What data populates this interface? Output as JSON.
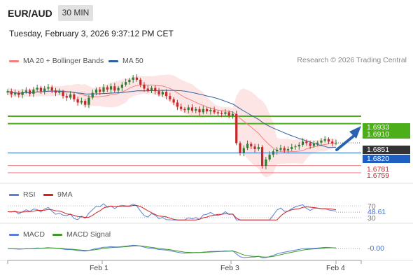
{
  "header": {
    "symbol": "EUR/AUD",
    "timeframe": "30 MIN",
    "datetime": "Tuesday, February 3, 2026 9:37:12 PM CET"
  },
  "main_legend": [
    {
      "label": "MA 20 + Bollinger Bands",
      "color": "#f08080"
    },
    {
      "label": "MA 50",
      "color": "#2f5f9e"
    }
  ],
  "credit": "Research © 2026 Trading Central",
  "colors": {
    "up_candle": "#2e7d32",
    "down_candle": "#c62828",
    "band_fill": "#fde2e2",
    "ma20": "#f08080",
    "ma50": "#2f5f9e",
    "resistance": "#4caf1a",
    "support": "#f08080",
    "current": "#333333",
    "pivot": "#1e5fbf",
    "arrow": "#2a62b0"
  },
  "price_labels": [
    {
      "text": "1.6933",
      "kind": "resistance"
    },
    {
      "text": "1.6910",
      "kind": "resistance"
    },
    {
      "text": "1.6851",
      "kind": "current"
    },
    {
      "text": "1.6820",
      "kind": "pivot"
    },
    {
      "text": "1.6781",
      "kind": "support"
    },
    {
      "text": "1.6759",
      "kind": "support"
    }
  ],
  "rsi_legend": [
    {
      "label": "RSI",
      "color": "#5b7fd6"
    },
    {
      "label": "9MA",
      "color": "#d62020"
    }
  ],
  "rsi_labels": [
    "70",
    "48.61",
    "30"
  ],
  "macd_legend": [
    {
      "label": "MACD",
      "color": "#5b7fd6"
    },
    {
      "label": "MACD Signal",
      "color": "#3c9a2a"
    }
  ],
  "macd_label": "-0.00",
  "x_axis_labels": [
    "Feb 1",
    "Feb 3",
    "Feb 4"
  ],
  "chart_data": {
    "type": "candlestick",
    "y_range": [
      1.6735,
      1.7075
    ],
    "levels": [
      {
        "value": 1.6933,
        "type": "resistance"
      },
      {
        "value": 1.691,
        "type": "resistance"
      },
      {
        "value": 1.6851,
        "type": "current"
      },
      {
        "value": 1.682,
        "type": "pivot"
      },
      {
        "value": 1.6781,
        "type": "support"
      },
      {
        "value": 1.6759,
        "type": "support"
      }
    ],
    "close_series": [
      1.701,
      1.7,
      1.7005,
      1.6998,
      1.7008,
      1.7012,
      1.7002,
      1.7015,
      1.702,
      1.701,
      1.7018,
      1.7022,
      1.7012,
      1.7005,
      1.7008,
      1.6995,
      1.699,
      1.7,
      1.6985,
      1.6975,
      1.698,
      1.6968,
      1.699,
      1.7005,
      1.7015,
      1.7008,
      1.7022,
      1.7015,
      1.7025,
      1.7012,
      1.702,
      1.703,
      1.7038,
      1.7045,
      1.7052,
      1.7045,
      1.703,
      1.7018,
      1.7012,
      1.702,
      1.701,
      1.7,
      1.7008,
      1.6995,
      1.6985,
      1.6975,
      1.6962,
      1.6955,
      1.6952,
      1.696,
      1.695,
      1.6955,
      1.6945,
      1.6955,
      1.6948,
      1.6952,
      1.6945,
      1.6942,
      1.694,
      1.6945,
      1.6935,
      1.694,
      1.685,
      1.682,
      1.6835,
      1.6848,
      1.684,
      1.6832,
      1.6838,
      1.678,
      1.68,
      1.6815,
      1.6825,
      1.683,
      1.6835,
      1.6828,
      1.6832,
      1.6838,
      1.684,
      1.6845,
      1.6855,
      1.685,
      1.6842,
      1.6848,
      1.6852,
      1.6858,
      1.6862,
      1.6855,
      1.685,
      1.6851
    ],
    "x_labels": [
      "Feb 1",
      "Feb 3",
      "Feb 4"
    ],
    "rsi": {
      "current": 48.61,
      "levels": [
        70,
        30
      ]
    },
    "macd": {
      "current": -0.0
    }
  }
}
